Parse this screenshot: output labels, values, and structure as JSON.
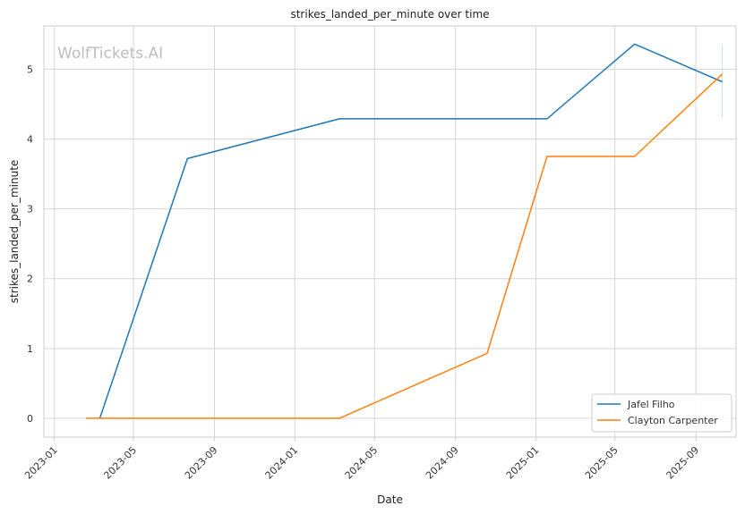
{
  "chart_data": {
    "type": "line",
    "title": "strikes_landed_per_minute over time",
    "xlabel": "Date",
    "ylabel": "strikes_landed_per_minute",
    "watermark": "WolfTickets.AI",
    "x_ticks": [
      "2023-01",
      "2023-05",
      "2023-09",
      "2024-01",
      "2024-05",
      "2024-09",
      "2025-01",
      "2025-05",
      "2025-09"
    ],
    "y_ticks": [
      "0",
      "1",
      "2",
      "3",
      "4",
      "5"
    ],
    "xlim": [
      "2022-12-16",
      "2025-11-01"
    ],
    "ylim": [
      -0.27,
      5.62
    ],
    "grid": true,
    "legend_position": "bottom-right",
    "series": [
      {
        "name": "Jafel Filho",
        "color": "#1f77b4",
        "points": [
          {
            "x": "2023-03-11",
            "y": 0.0
          },
          {
            "x": "2023-07-22",
            "y": 3.72
          },
          {
            "x": "2024-03-09",
            "y": 4.29
          },
          {
            "x": "2025-01-18",
            "y": 4.29
          },
          {
            "x": "2025-05-31",
            "y": 5.36
          },
          {
            "x": "2025-10-11",
            "y": 4.82
          }
        ]
      },
      {
        "name": "Clayton Carpenter",
        "color": "#ff7f0e",
        "points": [
          {
            "x": "2023-02-18",
            "y": 0.0
          },
          {
            "x": "2024-03-09",
            "y": 0.0
          },
          {
            "x": "2024-10-19",
            "y": 0.93
          },
          {
            "x": "2025-01-18",
            "y": 3.75
          },
          {
            "x": "2025-05-31",
            "y": 3.75
          },
          {
            "x": "2025-10-11",
            "y": 4.93
          }
        ]
      }
    ]
  }
}
